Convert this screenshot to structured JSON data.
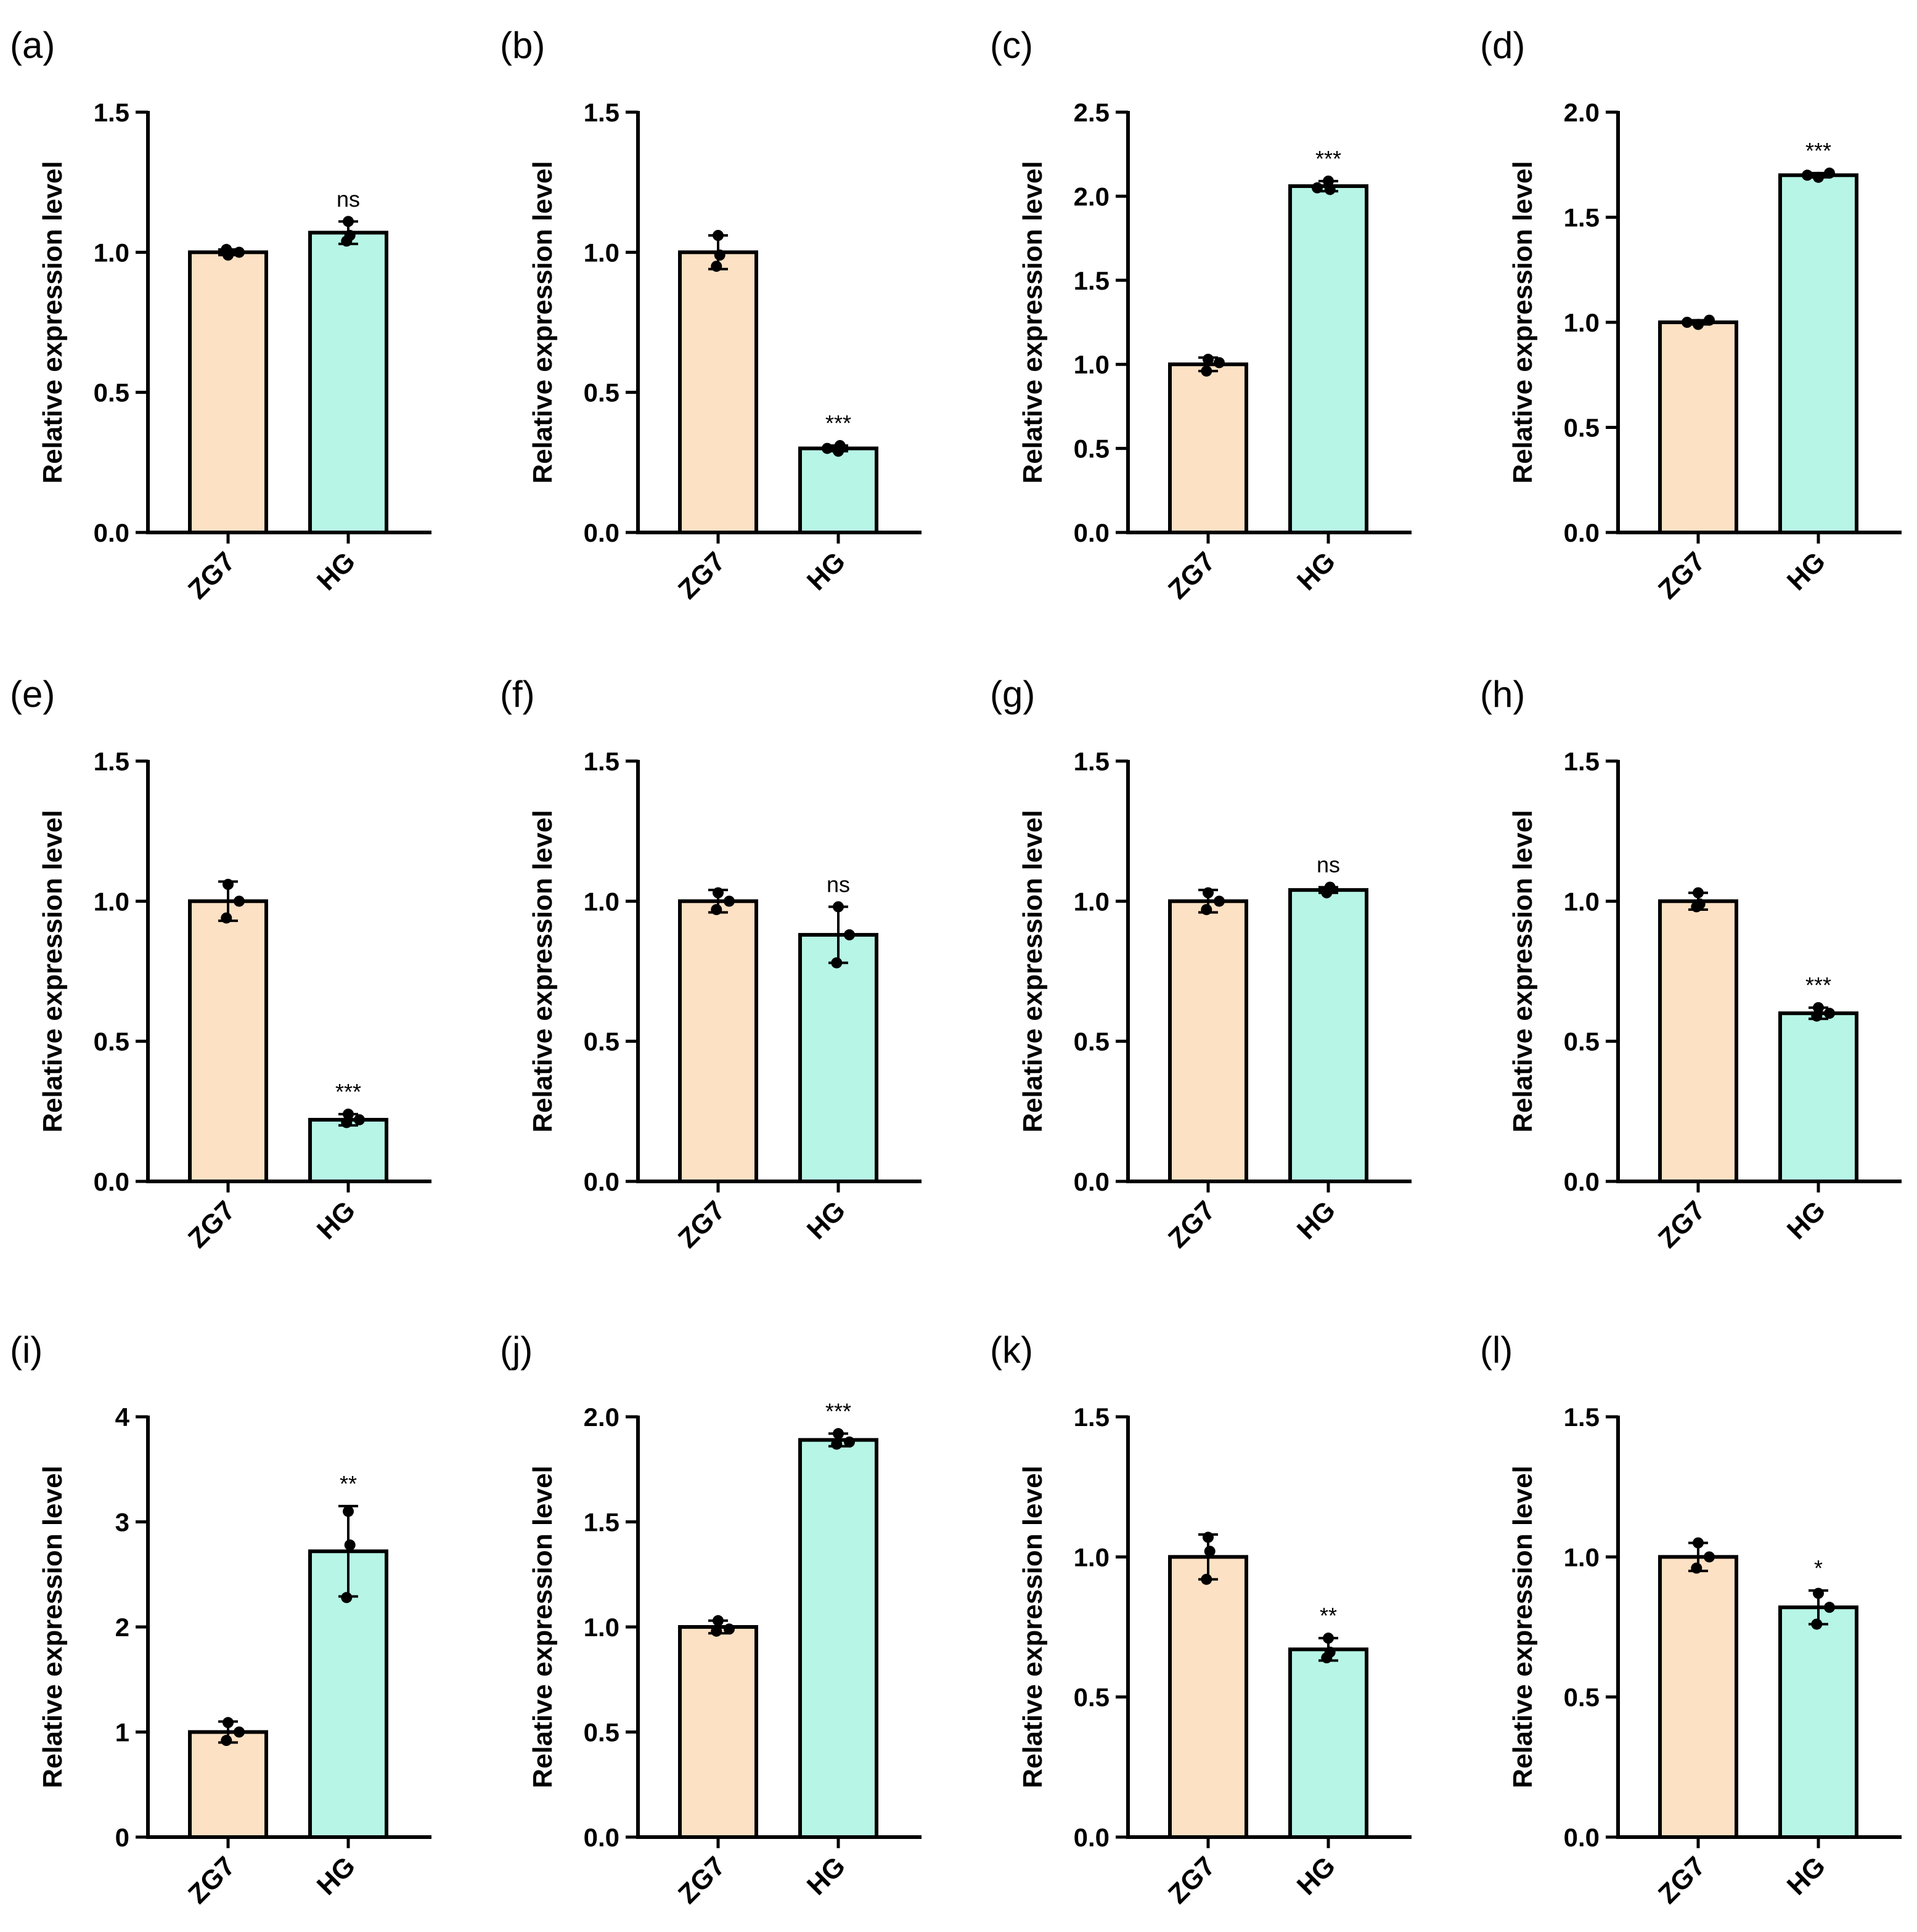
{
  "colors": {
    "zg7_fill": "#fde1c4",
    "hg_fill": "#b7f5e6",
    "stroke": "#000000"
  },
  "chart_data": [
    {
      "type": "bar",
      "panel_label": "(a)",
      "ylabel": "Relative expression level",
      "categories": [
        "ZG7",
        "HG"
      ],
      "ylim": [
        0,
        1.5
      ],
      "yticks": [
        0.0,
        0.5,
        1.0,
        1.5
      ],
      "ytick_labels": [
        "0.0",
        "0.5",
        "1.0",
        "1.5"
      ],
      "values": [
        1.0,
        1.07
      ],
      "errors": [
        0.01,
        0.04
      ],
      "points": [
        [
          0.99,
          1.01,
          1.0
        ],
        [
          1.11,
          1.04,
          1.06
        ]
      ],
      "annotations": [
        "",
        "ns"
      ]
    },
    {
      "type": "bar",
      "panel_label": "(b)",
      "ylabel": "Relative expression level",
      "categories": [
        "ZG7",
        "HG"
      ],
      "ylim": [
        0,
        1.5
      ],
      "yticks": [
        0.0,
        0.5,
        1.0,
        1.5
      ],
      "ytick_labels": [
        "0.0",
        "0.5",
        "1.0",
        "1.5"
      ],
      "values": [
        1.0,
        0.3
      ],
      "errors": [
        0.06,
        0.01
      ],
      "points": [
        [
          1.06,
          0.95,
          0.99
        ],
        [
          0.29,
          0.3,
          0.31
        ]
      ],
      "annotations": [
        "",
        "***"
      ]
    },
    {
      "type": "bar",
      "panel_label": "(c)",
      "ylabel": "Relative expression level",
      "categories": [
        "ZG7",
        "HG"
      ],
      "ylim": [
        0,
        2.5
      ],
      "yticks": [
        0.0,
        0.5,
        1.0,
        1.5,
        2.0,
        2.5
      ],
      "ytick_labels": [
        "0.0",
        "0.5",
        "1.0",
        "1.5",
        "2.0",
        "2.5"
      ],
      "values": [
        1.0,
        2.06
      ],
      "errors": [
        0.04,
        0.03
      ],
      "points": [
        [
          1.03,
          0.96,
          1.01
        ],
        [
          2.09,
          2.05,
          2.04
        ]
      ],
      "annotations": [
        "",
        "***"
      ]
    },
    {
      "type": "bar",
      "panel_label": "(d)",
      "ylabel": "Relative expression level",
      "categories": [
        "ZG7",
        "HG"
      ],
      "ylim": [
        0,
        2.0
      ],
      "yticks": [
        0.0,
        0.5,
        1.0,
        1.5,
        2.0
      ],
      "ytick_labels": [
        "0.0",
        "0.5",
        "1.0",
        "1.5",
        "2.0"
      ],
      "values": [
        1.0,
        1.7
      ],
      "errors": [
        0.01,
        0.01
      ],
      "points": [
        [
          0.99,
          1.0,
          1.01
        ],
        [
          1.69,
          1.7,
          1.71
        ]
      ],
      "annotations": [
        "",
        "***"
      ]
    },
    {
      "type": "bar",
      "panel_label": "(e)",
      "ylabel": "Relative expression level",
      "categories": [
        "ZG7",
        "HG"
      ],
      "ylim": [
        0,
        1.5
      ],
      "yticks": [
        0.0,
        0.5,
        1.0,
        1.5
      ],
      "ytick_labels": [
        "0.0",
        "0.5",
        "1.0",
        "1.5"
      ],
      "values": [
        1.0,
        0.22
      ],
      "errors": [
        0.07,
        0.02
      ],
      "points": [
        [
          1.06,
          0.94,
          1.0
        ],
        [
          0.24,
          0.21,
          0.22
        ]
      ],
      "annotations": [
        "",
        "***"
      ]
    },
    {
      "type": "bar",
      "panel_label": "(f)",
      "ylabel": "Relative expression level",
      "categories": [
        "ZG7",
        "HG"
      ],
      "ylim": [
        0,
        1.5
      ],
      "yticks": [
        0.0,
        0.5,
        1.0,
        1.5
      ],
      "ytick_labels": [
        "0.0",
        "0.5",
        "1.0",
        "1.5"
      ],
      "values": [
        1.0,
        0.88
      ],
      "errors": [
        0.04,
        0.1
      ],
      "points": [
        [
          1.03,
          0.97,
          1.0
        ],
        [
          0.98,
          0.78,
          0.88
        ]
      ],
      "annotations": [
        "",
        "ns"
      ]
    },
    {
      "type": "bar",
      "panel_label": "(g)",
      "ylabel": "Relative expression level",
      "categories": [
        "ZG7",
        "HG"
      ],
      "ylim": [
        0,
        1.5
      ],
      "yticks": [
        0.0,
        0.5,
        1.0,
        1.5
      ],
      "ytick_labels": [
        "0.0",
        "0.5",
        "1.0",
        "1.5"
      ],
      "values": [
        1.0,
        1.04
      ],
      "errors": [
        0.04,
        0.01
      ],
      "points": [
        [
          1.03,
          0.97,
          1.0
        ],
        [
          1.04,
          1.03,
          1.05
        ]
      ],
      "annotations": [
        "",
        "ns"
      ]
    },
    {
      "type": "bar",
      "panel_label": "(h)",
      "ylabel": "Relative expression level",
      "categories": [
        "ZG7",
        "HG"
      ],
      "ylim": [
        0,
        1.5
      ],
      "yticks": [
        0.0,
        0.5,
        1.0,
        1.5
      ],
      "ytick_labels": [
        "0.0",
        "0.5",
        "1.0",
        "1.5"
      ],
      "values": [
        1.0,
        0.6
      ],
      "errors": [
        0.03,
        0.02
      ],
      "points": [
        [
          1.03,
          0.98,
          0.99
        ],
        [
          0.62,
          0.59,
          0.6
        ]
      ],
      "annotations": [
        "",
        "***"
      ]
    },
    {
      "type": "bar",
      "panel_label": "(i)",
      "ylabel": "Relative expression level",
      "categories": [
        "ZG7",
        "HG"
      ],
      "ylim": [
        0,
        4
      ],
      "yticks": [
        0,
        1,
        2,
        3,
        4
      ],
      "ytick_labels": [
        "0",
        "1",
        "2",
        "3",
        "4"
      ],
      "values": [
        1.0,
        2.72
      ],
      "errors": [
        0.1,
        0.43
      ],
      "points": [
        [
          1.09,
          0.92,
          1.0
        ],
        [
          3.1,
          2.28,
          2.78
        ]
      ],
      "annotations": [
        "",
        "**"
      ]
    },
    {
      "type": "bar",
      "panel_label": "(j)",
      "ylabel": "Relative expression level",
      "categories": [
        "ZG7",
        "HG"
      ],
      "ylim": [
        0,
        2.0
      ],
      "yticks": [
        0.0,
        0.5,
        1.0,
        1.5,
        2.0
      ],
      "ytick_labels": [
        "0.0",
        "0.5",
        "1.0",
        "1.5",
        "2.0"
      ],
      "values": [
        1.0,
        1.89
      ],
      "errors": [
        0.03,
        0.03
      ],
      "points": [
        [
          1.03,
          0.98,
          0.99
        ],
        [
          1.92,
          1.87,
          1.88
        ]
      ],
      "annotations": [
        "",
        "***"
      ]
    },
    {
      "type": "bar",
      "panel_label": "(k)",
      "ylabel": "Relative expression level",
      "categories": [
        "ZG7",
        "HG"
      ],
      "ylim": [
        0,
        1.5
      ],
      "yticks": [
        0.0,
        0.5,
        1.0,
        1.5
      ],
      "ytick_labels": [
        "0.0",
        "0.5",
        "1.0",
        "1.5"
      ],
      "values": [
        1.0,
        0.67
      ],
      "errors": [
        0.08,
        0.04
      ],
      "points": [
        [
          1.07,
          0.92,
          1.02
        ],
        [
          0.71,
          0.64,
          0.66
        ]
      ],
      "annotations": [
        "",
        "**"
      ]
    },
    {
      "type": "bar",
      "panel_label": "(l)",
      "ylabel": "Relative expression level",
      "categories": [
        "ZG7",
        "HG"
      ],
      "ylim": [
        0,
        1.5
      ],
      "yticks": [
        0.0,
        0.5,
        1.0,
        1.5
      ],
      "ytick_labels": [
        "0.0",
        "0.5",
        "1.0",
        "1.5"
      ],
      "values": [
        1.0,
        0.82
      ],
      "errors": [
        0.05,
        0.06
      ],
      "points": [
        [
          1.05,
          0.96,
          1.0
        ],
        [
          0.87,
          0.76,
          0.82
        ]
      ],
      "annotations": [
        "",
        "*"
      ]
    }
  ]
}
